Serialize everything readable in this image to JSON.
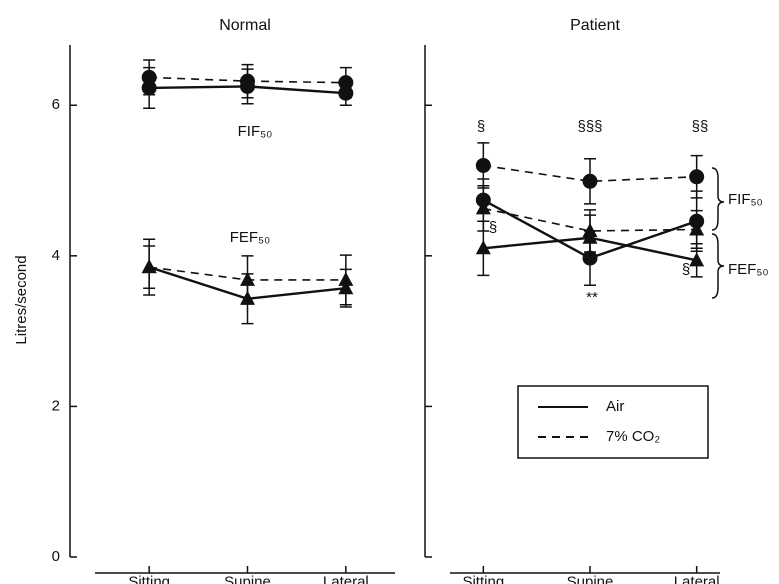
{
  "chart_data": [
    {
      "type": "line",
      "title": "Normal",
      "ylabel": "Litres/second",
      "categories": [
        "Sitting",
        "Supine",
        "Lateral"
      ],
      "ylim": [
        0,
        6.8
      ],
      "yticks": [
        0,
        2,
        4,
        6
      ],
      "tick_labels": true,
      "labels": [
        "FIF₅₀",
        "FEF₅₀"
      ],
      "series": [
        {
          "marker": "circle",
          "dashed": true,
          "values": [
            6.37,
            6.32,
            6.3
          ],
          "errors": [
            0.23,
            0.22,
            0.2
          ]
        },
        {
          "marker": "circle",
          "dashed": false,
          "values": [
            6.23,
            6.25,
            6.16
          ],
          "errors": [
            0.27,
            0.23,
            0.16
          ]
        },
        {
          "marker": "triangle",
          "dashed": true,
          "values": [
            3.85,
            3.68,
            3.68
          ],
          "errors": [
            0.28,
            0.32,
            0.33
          ]
        },
        {
          "marker": "triangle",
          "dashed": false,
          "values": [
            3.85,
            3.43,
            3.57
          ],
          "errors": [
            0.37,
            0.33,
            0.25
          ]
        }
      ]
    },
    {
      "type": "line",
      "title": "Patient",
      "categories": [
        "Sitting",
        "Supine",
        "Lateral"
      ],
      "ylim": [
        0,
        6.8
      ],
      "yticks": [
        0,
        2,
        4,
        6
      ],
      "tick_labels": false,
      "labels": [
        "FIF₅₀",
        "FEF₅₀"
      ],
      "annotations": [
        "§",
        "§§§",
        "§§",
        "§",
        "§",
        "**"
      ],
      "legend": [
        {
          "name": "Air",
          "dashed": false
        },
        {
          "name": "7% CO₂",
          "dashed": true
        }
      ],
      "series": [
        {
          "marker": "circle",
          "dashed": true,
          "values": [
            5.2,
            4.99,
            5.05
          ],
          "errors": [
            0.3,
            0.3,
            0.28
          ]
        },
        {
          "marker": "circle",
          "dashed": false,
          "values": [
            4.74,
            3.97,
            4.46
          ],
          "errors": [
            0.28,
            0.36,
            0.4
          ]
        },
        {
          "marker": "triangle",
          "dashed": true,
          "values": [
            4.63,
            4.33,
            4.35
          ],
          "errors": [
            0.3,
            0.28,
            0.25
          ]
        },
        {
          "marker": "triangle",
          "dashed": false,
          "values": [
            4.1,
            4.24,
            3.94
          ],
          "errors": [
            0.36,
            0.3,
            0.22
          ]
        }
      ]
    }
  ]
}
